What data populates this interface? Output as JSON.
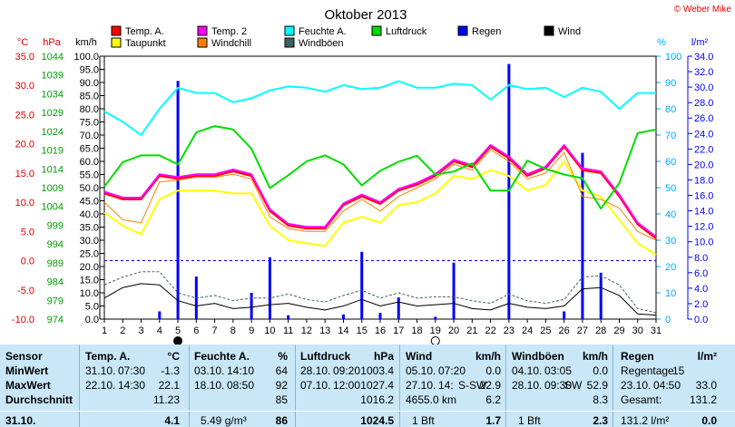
{
  "copyright": "© Weber Mike",
  "chart_data": {
    "type": "line",
    "title": "Oktober 2013",
    "x": [
      1,
      2,
      3,
      4,
      5,
      6,
      7,
      8,
      9,
      10,
      11,
      12,
      13,
      14,
      15,
      16,
      17,
      18,
      19,
      20,
      21,
      22,
      23,
      24,
      25,
      26,
      27,
      28,
      29,
      30,
      31
    ],
    "axes": {
      "temp": {
        "label": "°C",
        "ticks": [
          "35.0",
          "30.0",
          "25.0",
          "20.0",
          "15.0",
          "10.0",
          "5.0",
          "0.0",
          "-5.0",
          "-10.0"
        ],
        "range": [
          -10,
          35
        ],
        "color": "#ff0000"
      },
      "pressure": {
        "label": "hPa",
        "ticks": [
          "1044",
          "1039",
          "1034",
          "1029",
          "1024",
          "1019",
          "1014",
          "1009",
          "1004",
          "999",
          "994",
          "989",
          "984",
          "979",
          "974"
        ],
        "range": [
          974,
          1044
        ],
        "color": "#00c000"
      },
      "wind": {
        "label": "km/h",
        "ticks": [
          "100.0",
          "95.0",
          "90.0",
          "85.0",
          "80.0",
          "75.0",
          "70.0",
          "65.0",
          "60.0",
          "55.0",
          "50.0",
          "45.0",
          "40.0",
          "35.0",
          "30.0",
          "25.0",
          "20.0",
          "15.0",
          "10.0",
          "5.0",
          "0.0"
        ],
        "range": [
          0,
          100
        ],
        "color": "#000000"
      },
      "humidity": {
        "label": "%",
        "ticks": [
          "100",
          "90",
          "80",
          "70",
          "60",
          "50",
          "40",
          "30",
          "20",
          "10",
          "0"
        ],
        "range": [
          0,
          100
        ],
        "color": "#00aaff"
      },
      "rain": {
        "label": "l/m²",
        "ticks": [
          "34.0",
          "32.0",
          "30.0",
          "28.0",
          "26.0",
          "24.0",
          "22.0",
          "20.0",
          "18.0",
          "16.0",
          "14.0",
          "12.0",
          "10.0",
          "8.0",
          "6.0",
          "4.0",
          "2.0",
          "0.0"
        ],
        "range": [
          0,
          34
        ],
        "color": "#0000ff"
      }
    },
    "legend": [
      {
        "name": "Temp. A.",
        "color": "#ff0000"
      },
      {
        "name": "Temp. 2",
        "color": "#ff00ff"
      },
      {
        "name": "Feuchte A.",
        "color": "#00ffff"
      },
      {
        "name": "Luftdruck",
        "color": "#00dd00"
      },
      {
        "name": "Regen",
        "color": "#0000ff"
      },
      {
        "name": "Wind",
        "color": "#000000"
      },
      {
        "name": "Taupunkt",
        "color": "#ffff00"
      },
      {
        "name": "Windchill",
        "color": "#ff8000"
      },
      {
        "name": "Windböen",
        "color": "#406060"
      }
    ],
    "series": [
      {
        "name": "Temp. A.",
        "axis": "temp",
        "color": "#ff0000",
        "width": 2,
        "values": [
          11.5,
          10.5,
          10.5,
          14.5,
          14.0,
          14.5,
          14.5,
          15.3,
          14.5,
          8.5,
          6.0,
          5.5,
          5.5,
          9.5,
          11.0,
          9.7,
          12.0,
          13.0,
          14.5,
          17.0,
          16.0,
          19.5,
          17.5,
          14.5,
          15.8,
          19.5,
          15.5,
          15.0,
          11.0,
          6.2,
          3.8
        ]
      },
      {
        "name": "Temp. 2",
        "axis": "temp",
        "color": "#ff00ff",
        "width": 2,
        "values": [
          11.8,
          10.8,
          10.8,
          14.8,
          14.3,
          14.8,
          14.8,
          15.6,
          14.8,
          8.8,
          6.3,
          5.8,
          5.8,
          9.8,
          11.3,
          10.0,
          12.3,
          13.3,
          14.8,
          17.3,
          16.3,
          19.8,
          17.8,
          14.8,
          16.1,
          19.8,
          15.8,
          15.3,
          11.3,
          6.5,
          4.1
        ]
      },
      {
        "name": "Taupunkt",
        "axis": "temp",
        "color": "#ffff00",
        "width": 2,
        "values": [
          8.2,
          6.0,
          4.5,
          10.5,
          12.0,
          12.0,
          12.0,
          11.5,
          11.5,
          6.0,
          3.5,
          3.0,
          2.5,
          6.5,
          7.5,
          6.5,
          9.5,
          10.0,
          11.5,
          14.5,
          14.0,
          15.5,
          14.5,
          12.0,
          13.0,
          17.0,
          12.0,
          11.0,
          7.0,
          3.0,
          1.0
        ]
      },
      {
        "name": "Windchill",
        "axis": "temp",
        "color": "#ff8000",
        "width": 1,
        "values": [
          10.0,
          7.0,
          6.5,
          13.5,
          13.8,
          14.3,
          14.3,
          14.8,
          14.0,
          7.5,
          5.5,
          5.0,
          5.0,
          8.5,
          10.5,
          8.5,
          11.0,
          12.5,
          14.0,
          16.5,
          15.5,
          19.0,
          17.0,
          14.0,
          15.0,
          18.5,
          11.0,
          10.5,
          9.0,
          5.0,
          3.5
        ]
      },
      {
        "name": "Luftdruck",
        "axis": "pressure",
        "color": "#00dd00",
        "width": 2,
        "values": [
          1009.3,
          1015.8,
          1017.6,
          1017.6,
          1015.2,
          1023.7,
          1025.4,
          1024.5,
          1019.4,
          1008.9,
          1012.3,
          1016.0,
          1017.6,
          1015.2,
          1009.6,
          1013.5,
          1015.9,
          1017.5,
          1012.5,
          1013.3,
          1015.5,
          1008.2,
          1008.2,
          1016.2,
          1014.0,
          1012.5,
          1011.5,
          1003.4,
          1010.2,
          1023.5,
          1024.5
        ]
      },
      {
        "name": "Feuchte A.",
        "axis": "humidity",
        "color": "#00ffff",
        "width": 2,
        "values": [
          79.0,
          75.0,
          70.0,
          80.0,
          88.0,
          86.0,
          86.0,
          82.5,
          84.0,
          87.0,
          88.5,
          88.0,
          86.5,
          89.0,
          87.5,
          88.0,
          90.5,
          88.0,
          88.0,
          89.5,
          89.0,
          83.5,
          89.0,
          87.5,
          88.0,
          84.5,
          88.0,
          86.5,
          80.0,
          86.0,
          86.0
        ]
      },
      {
        "name": "Wind",
        "axis": "wind",
        "color": "#000000",
        "width": 1,
        "values": [
          8.0,
          12.0,
          13.5,
          13.0,
          7.0,
          5.0,
          6.0,
          4.0,
          4.5,
          5.5,
          6.0,
          4.5,
          3.5,
          5.0,
          7.5,
          5.0,
          6.5,
          5.0,
          5.5,
          6.0,
          4.0,
          3.5,
          6.0,
          4.5,
          4.0,
          5.0,
          11.5,
          12.0,
          9.0,
          2.0,
          1.5
        ]
      },
      {
        "name": "Windböen",
        "axis": "wind",
        "color": "#406060",
        "width": 1,
        "dashed": true,
        "values": [
          13.0,
          16.0,
          18.0,
          18.0,
          10.0,
          8.0,
          9.0,
          7.0,
          8.0,
          8.0,
          9.5,
          7.5,
          6.5,
          9.0,
          11.0,
          8.0,
          10.0,
          8.0,
          8.5,
          8.5,
          7.0,
          6.0,
          9.5,
          7.0,
          6.0,
          7.5,
          16.0,
          16.5,
          13.0,
          4.0,
          2.5
        ]
      }
    ],
    "rain": {
      "name": "Regen",
      "axis": "rain",
      "color": "#0000ff",
      "values": [
        0,
        0,
        0,
        1.0,
        30.8,
        5.5,
        0,
        0,
        3.4,
        8.0,
        0.5,
        0,
        0,
        0.6,
        8.7,
        0.8,
        2.8,
        0,
        0.3,
        7.3,
        0,
        0,
        33.0,
        0,
        0,
        1.0,
        21.5,
        6.0,
        0,
        0,
        0
      ]
    },
    "ref_line": {
      "axis": "temp",
      "value": 0.0,
      "color": "#0000ff",
      "dashed": true
    },
    "moon": [
      {
        "day": 5,
        "phase": "new"
      },
      {
        "day": 19,
        "phase": "full"
      }
    ]
  },
  "stats": {
    "sensor": {
      "title": "Sensor",
      "rows": [
        "MinWert",
        "MaxWert",
        "Durchschnitt",
        "31.10."
      ]
    },
    "temp": {
      "title": "Temp. A.",
      "unit": "°C",
      "min": {
        "date": "31.10.",
        "time": "07:30",
        "value": "-1.3"
      },
      "max": {
        "date": "22.10.",
        "time": "14:30",
        "value": "22.1"
      },
      "avg": "11.23",
      "current": "4.1"
    },
    "humidity": {
      "title": "Feuchte A.",
      "unit": "%",
      "min": {
        "date": "03.10.",
        "time": "14:10",
        "value": "64"
      },
      "max": {
        "date": "18.10.",
        "time": "08:50",
        "value": "92"
      },
      "avg": "85",
      "current_extra": "5.49 g/m³",
      "current": "86"
    },
    "pressure": {
      "title": "Luftdruck",
      "unit": "hPa",
      "min": {
        "date": "28.10.",
        "time": "09:20",
        "value": "1003.4"
      },
      "max": {
        "date": "07.10.",
        "time": "12:00",
        "value": "1027.4"
      },
      "avg": "1016.2",
      "current": "1024.5"
    },
    "wind": {
      "title": "Wind",
      "unit": "km/h",
      "min": {
        "date": "05.10.",
        "time": "07:20",
        "value": "0.0"
      },
      "max": {
        "date": "27.10.",
        "time": "14:",
        "dir": "S-SW",
        "value": "22.9"
      },
      "avg_extra": "4655.0 km",
      "avg": "6.2",
      "current_extra": "1 Bft",
      "current": "1.7"
    },
    "gust": {
      "title": "Windböen",
      "unit": "km/h",
      "min": {
        "date": "04.10.",
        "time": "03:05",
        "value": "0.0"
      },
      "max": {
        "date": "28.10.",
        "time": "09:30",
        "dir": "SW",
        "value": "52.9"
      },
      "avg": "8.3",
      "current_extra": "1 Bft",
      "current": "2.3"
    },
    "rain": {
      "title": "Regen",
      "unit": "l/m²",
      "days_label": "Regentage:",
      "days": "15",
      "max": {
        "date": "23.10.",
        "time": "04:50",
        "value": "33.0"
      },
      "total_label": "Gesamt:",
      "total": "131.2",
      "current_extra": "131.2 l/m²",
      "current": "0.0"
    }
  }
}
